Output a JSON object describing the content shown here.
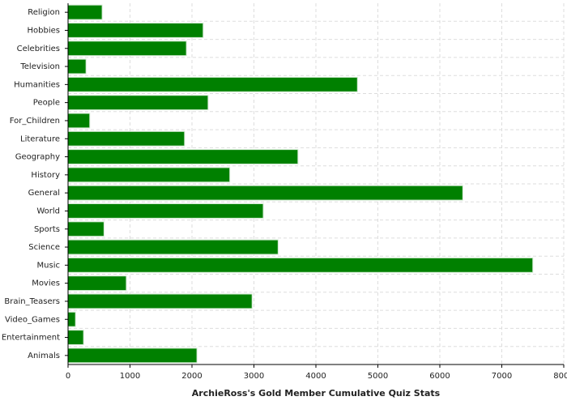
{
  "chart_data": {
    "type": "bar",
    "orientation": "horizontal",
    "xlabel": "ArchieRoss's Gold Member Cumulative Quiz Stats",
    "categories": [
      "Religion",
      "Hobbies",
      "Celebrities",
      "Television",
      "Humanities",
      "People",
      "For_Children",
      "Literature",
      "Geography",
      "History",
      "General",
      "World",
      "Sports",
      "Science",
      "Music",
      "Movies",
      "Brain_Teasers",
      "Video_Games",
      "Entertainment",
      "Animals"
    ],
    "values": [
      550,
      2180,
      1910,
      290,
      4670,
      2260,
      350,
      1880,
      3710,
      2610,
      6370,
      3150,
      580,
      3390,
      7500,
      940,
      2970,
      120,
      250,
      2080
    ],
    "color": "#008000",
    "xlim": [
      0,
      8000
    ],
    "xticks": [
      0,
      1000,
      2000,
      3000,
      4000,
      5000,
      6000,
      7000,
      8000
    ],
    "grid": true
  }
}
